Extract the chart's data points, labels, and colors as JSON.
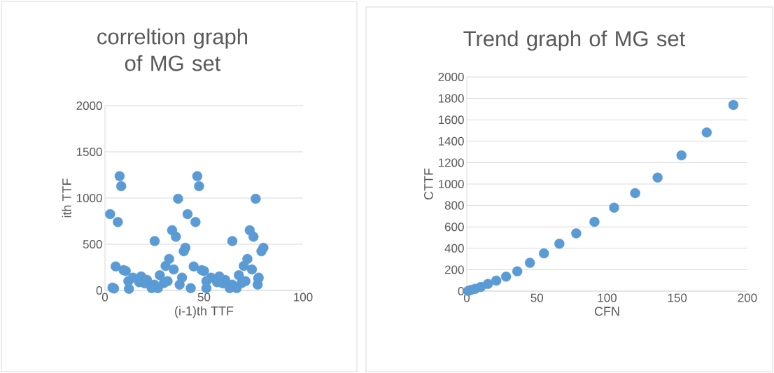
{
  "chart_data": [
    {
      "type": "scatter",
      "title": "correltion graph of MG set",
      "xlabel": "(i-1)th TTF",
      "ylabel": "ith TTF",
      "color": "#5b9bd5",
      "grid": "y",
      "xlim": [
        0,
        100
      ],
      "ylim": [
        0,
        2000
      ],
      "xticks": [
        0,
        50,
        100
      ],
      "yticks": [
        0,
        500,
        1000,
        1500,
        2000
      ],
      "x": [
        7.4,
        8.2,
        36.9,
        2.6,
        6.5,
        33.9,
        35.8,
        25.1,
        40.6,
        39.8,
        46.6,
        47.5,
        41.7,
        45.7,
        76.1,
        73.1,
        75,
        64.3,
        80,
        79,
        5.4,
        9.4,
        10.5,
        3.8,
        4.6,
        12.1,
        11.8,
        14.1,
        18.3,
        21.2,
        23.6,
        26.7,
        27.7,
        30.6,
        32.4,
        34.7,
        31.6,
        29.7,
        38.9,
        37.7,
        43.3,
        44.8,
        48.9,
        50,
        51.2,
        51.2,
        53.6,
        57.7,
        60.7,
        63,
        66.5,
        67.6,
        70.1,
        71.9,
        74.2,
        70.9,
        77.6,
        77.1,
        69,
        17.3,
        20.2,
        24.9,
        56.6,
        59.5,
        64.2,
        77.4
      ],
      "values": [
        1237,
        1129,
        992,
        826,
        740,
        651,
        581,
        535,
        462,
        424,
        1237,
        1129,
        826,
        740,
        992,
        651,
        581,
        535,
        462,
        424,
        260,
        220,
        210,
        30,
        20,
        17,
        100,
        139,
        151,
        114,
        25,
        25,
        164,
        265,
        341,
        227,
        100,
        80,
        139,
        63,
        25,
        260,
        220,
        210,
        100,
        25,
        139,
        151,
        114,
        25,
        25,
        164,
        265,
        341,
        227,
        100,
        139,
        63,
        80,
        89,
        76,
        63,
        89,
        76,
        63,
        129
      ]
    },
    {
      "type": "scatter",
      "title": "Trend graph of MG set",
      "xlabel": "CFN",
      "ylabel": "CTTF",
      "color": "#5b9bd5",
      "grid": "y",
      "xlim": [
        0,
        200
      ],
      "ylim": [
        0,
        2000
      ],
      "xticks": [
        0,
        50,
        100,
        150,
        200
      ],
      "yticks": [
        0,
        200,
        400,
        600,
        800,
        1000,
        1200,
        1400,
        1600,
        1800,
        2000
      ],
      "x": [
        1,
        3,
        6,
        10,
        15,
        21,
        28,
        36,
        45,
        55,
        66,
        78,
        91,
        105,
        120,
        136,
        153,
        171,
        190
      ],
      "values": [
        2,
        12,
        22,
        39,
        67,
        98,
        135,
        185,
        264,
        353,
        442,
        540,
        647,
        780,
        915,
        1061,
        1268,
        1482,
        1739
      ]
    }
  ]
}
